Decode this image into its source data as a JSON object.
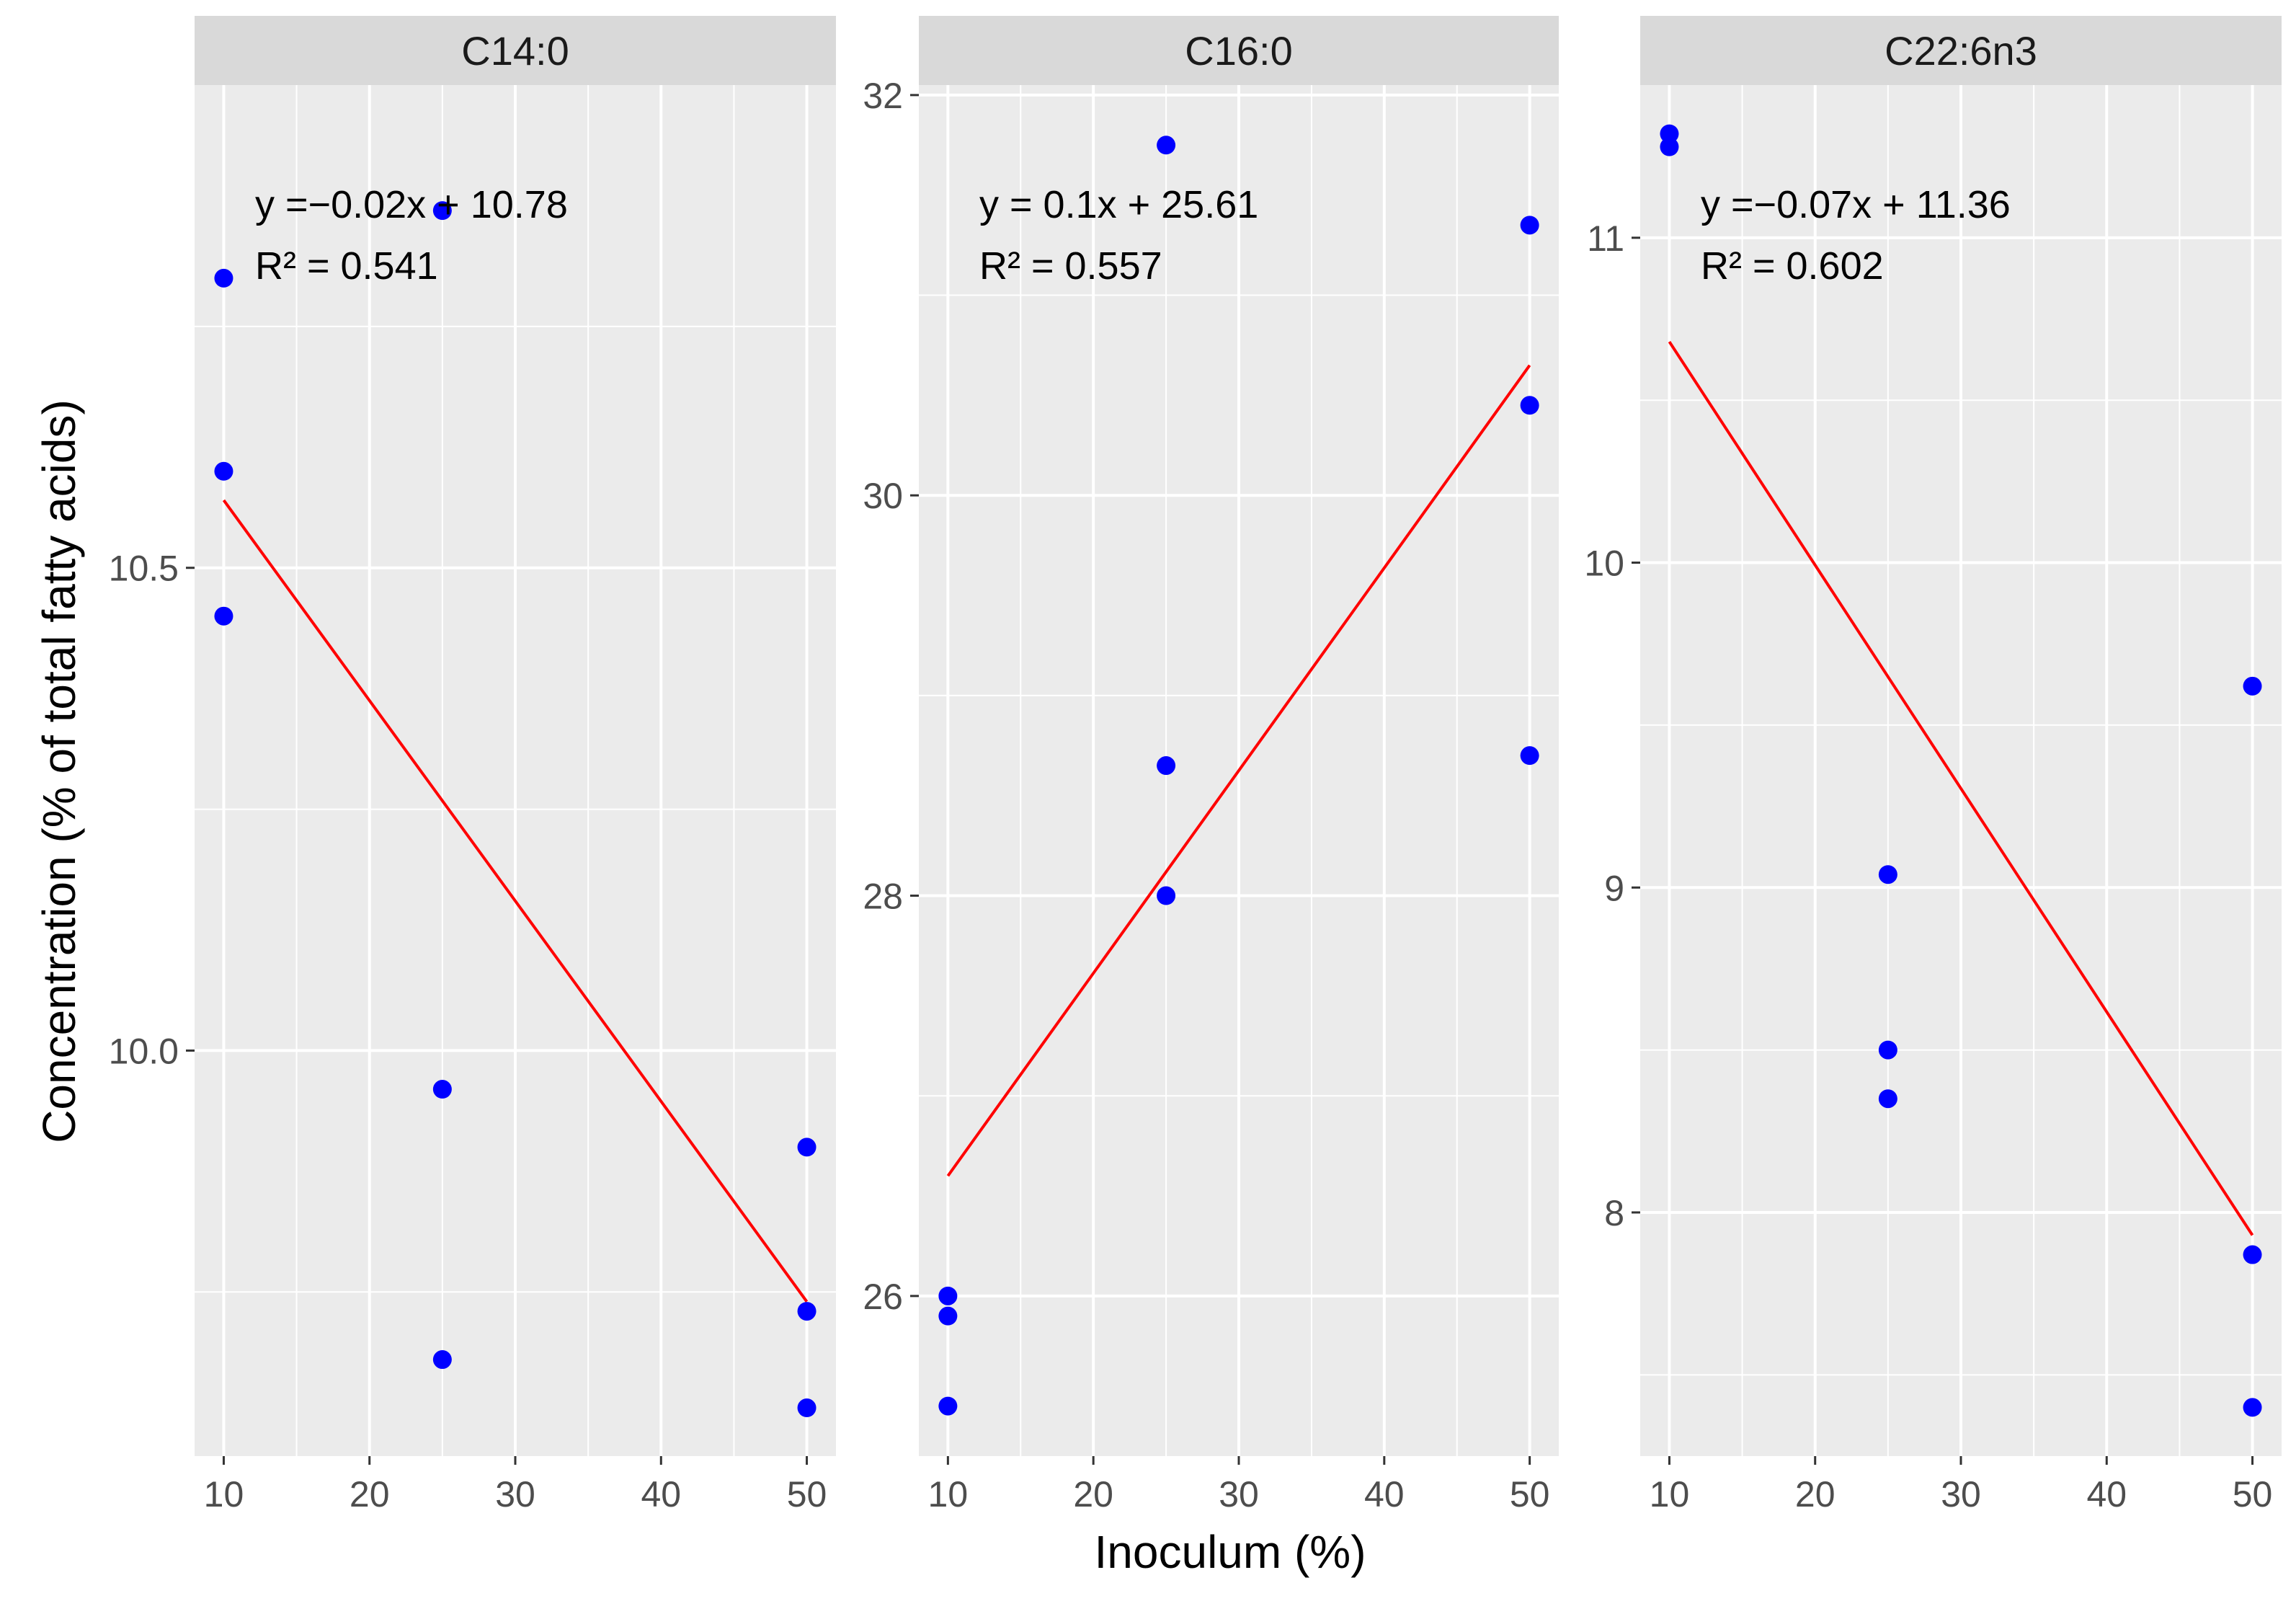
{
  "colors": {
    "panel_bg": "#EBEBEB",
    "strip_bg": "#D9D9D9",
    "grid": "#FFFFFF",
    "point": "#0000FF",
    "fit_line": "#FF0000"
  },
  "chart_data": {
    "type": "scatter",
    "xlabel": "Inoculum (%)",
    "ylabel": "Concentration (% of total fatty acids)",
    "panels": [
      {
        "title": "C14:0",
        "xlim": [
          8,
          52
        ],
        "ylim": [
          9.58,
          11.0
        ],
        "x_ticks": [
          10,
          20,
          30,
          40,
          50
        ],
        "x_tick_labels": [
          "10",
          "20",
          "30",
          "40",
          "50"
        ],
        "y_ticks": [
          10.0,
          10.5
        ],
        "y_tick_labels": [
          "10.0",
          "10.5"
        ],
        "points": [
          {
            "x": 10,
            "y": 10.8
          },
          {
            "x": 10,
            "y": 10.6
          },
          {
            "x": 10,
            "y": 10.45
          },
          {
            "x": 25,
            "y": 10.87
          },
          {
            "x": 25,
            "y": 9.96
          },
          {
            "x": 25,
            "y": 9.68
          },
          {
            "x": 50,
            "y": 9.9
          },
          {
            "x": 50,
            "y": 9.73
          },
          {
            "x": 50,
            "y": 9.63
          }
        ],
        "fit": {
          "x": [
            10,
            50
          ],
          "y": [
            10.57,
            9.74
          ]
        },
        "equation": "y =−0.02x + 10.78",
        "r_squared": "R² = 0.541"
      },
      {
        "title": "C16:0",
        "xlim": [
          8,
          52
        ],
        "ylim": [
          25.2,
          32.05
        ],
        "x_ticks": [
          10,
          20,
          30,
          40,
          50
        ],
        "x_tick_labels": [
          "10",
          "20",
          "30",
          "40",
          "50"
        ],
        "y_ticks": [
          26,
          28,
          30,
          32
        ],
        "y_tick_labels": [
          "26",
          "28",
          "30",
          "32"
        ],
        "points": [
          {
            "x": 10,
            "y": 26.0
          },
          {
            "x": 10,
            "y": 25.9
          },
          {
            "x": 10,
            "y": 25.45
          },
          {
            "x": 25,
            "y": 31.75
          },
          {
            "x": 25,
            "y": 28.65
          },
          {
            "x": 25,
            "y": 28.0
          },
          {
            "x": 50,
            "y": 31.35
          },
          {
            "x": 50,
            "y": 30.45
          },
          {
            "x": 50,
            "y": 28.7
          }
        ],
        "fit": {
          "x": [
            10,
            50
          ],
          "y": [
            26.6,
            30.65
          ]
        },
        "equation": "y = 0.1x + 25.61",
        "r_squared": "R² = 0.557"
      },
      {
        "title": "C22:6n3",
        "xlim": [
          8,
          52
        ],
        "ylim": [
          7.25,
          11.47
        ],
        "x_ticks": [
          10,
          20,
          30,
          40,
          50
        ],
        "x_tick_labels": [
          "10",
          "20",
          "30",
          "40",
          "50"
        ],
        "y_ticks": [
          8,
          9,
          10,
          11
        ],
        "y_tick_labels": [
          "8",
          "9",
          "10",
          "11"
        ],
        "points": [
          {
            "x": 10,
            "y": 11.32
          },
          {
            "x": 10,
            "y": 11.28
          },
          {
            "x": 25,
            "y": 9.04
          },
          {
            "x": 25,
            "y": 8.5
          },
          {
            "x": 25,
            "y": 8.35
          },
          {
            "x": 50,
            "y": 9.62
          },
          {
            "x": 50,
            "y": 7.87
          },
          {
            "x": 50,
            "y": 7.4
          }
        ],
        "fit": {
          "x": [
            10,
            50
          ],
          "y": [
            10.68,
            7.93
          ]
        },
        "equation": "y =−0.07x + 11.36",
        "r_squared": "R² = 0.602"
      }
    ]
  }
}
